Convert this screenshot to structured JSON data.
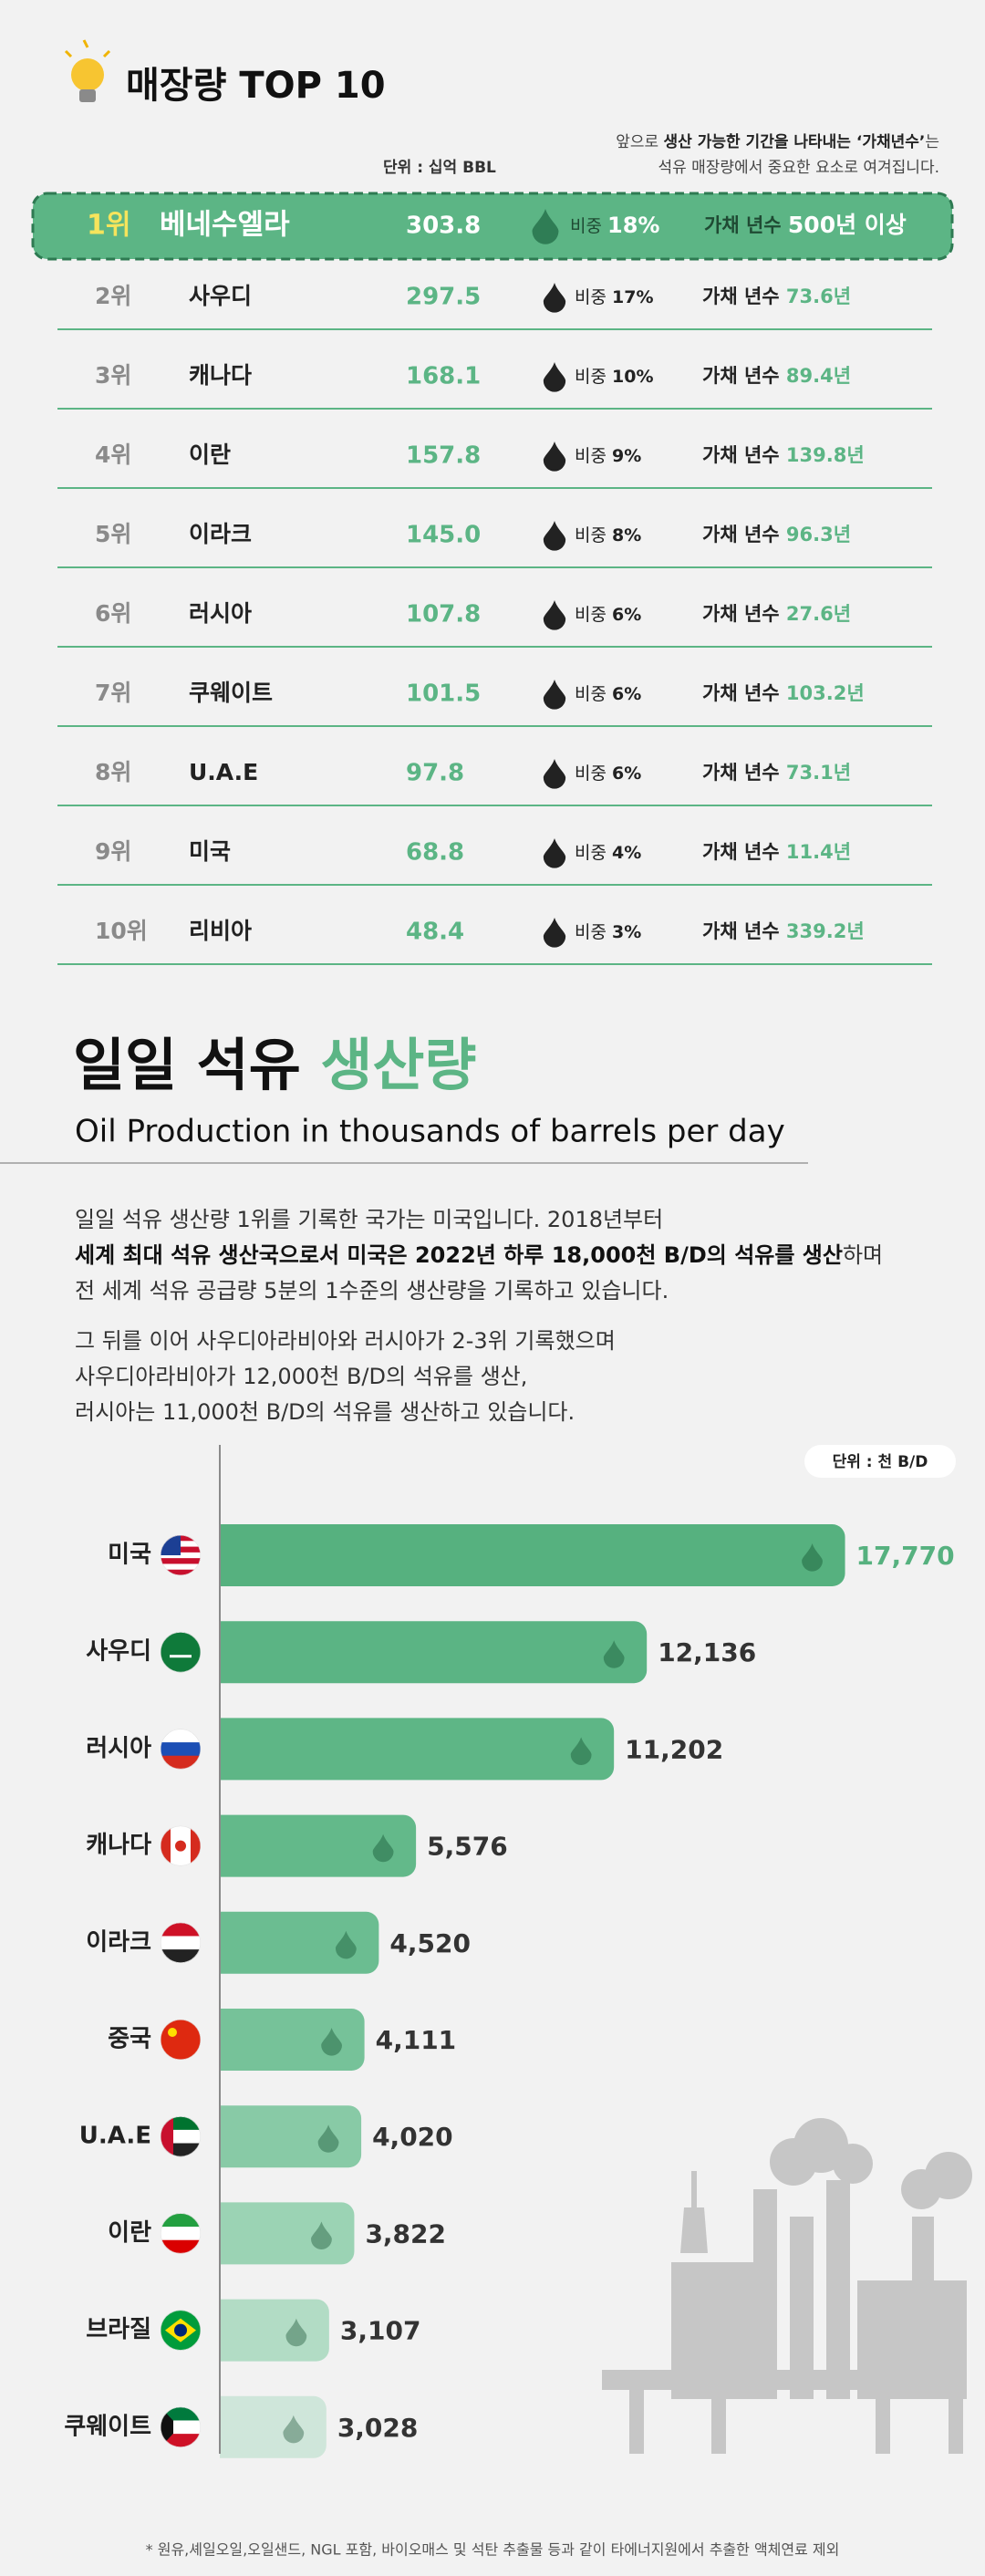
{
  "reserves": {
    "title": "매장량 TOP 10",
    "note": {
      "line1_start": "앞으로 ",
      "line1_bold": "생산 가능한 기간을 나타내는 ‘가채년수’",
      "line1_end": "는",
      "line2": "석유 매장량에서 중요한 요소로 여겨집니다."
    },
    "unit": "단위 : 십억 BBL",
    "share_label": "비중",
    "years_label": "가채 년수",
    "rows": [
      {
        "rank": "1위",
        "country": "베네수엘라",
        "value": "303.8",
        "share": "18%",
        "years": "500년 이상"
      },
      {
        "rank": "2위",
        "country": "사우디",
        "value": "297.5",
        "share": "17%",
        "years": "73.6년"
      },
      {
        "rank": "3위",
        "country": "캐나다",
        "value": "168.1",
        "share": "10%",
        "years": "89.4년"
      },
      {
        "rank": "4위",
        "country": "이란",
        "value": "157.8",
        "share": "9%",
        "years": "139.8년"
      },
      {
        "rank": "5위",
        "country": "이라크",
        "value": "145.0",
        "share": "8%",
        "years": "96.3년"
      },
      {
        "rank": "6위",
        "country": "러시아",
        "value": "107.8",
        "share": "6%",
        "years": "27.6년"
      },
      {
        "rank": "7위",
        "country": "쿠웨이트",
        "value": "101.5",
        "share": "6%",
        "years": "103.2년"
      },
      {
        "rank": "8위",
        "country": "U.A.E",
        "value": "97.8",
        "share": "6%",
        "years": "73.1년"
      },
      {
        "rank": "9위",
        "country": "미국",
        "value": "68.8",
        "share": "4%",
        "years": "11.4년"
      },
      {
        "rank": "10위",
        "country": "리비아",
        "value": "48.4",
        "share": "3%",
        "years": "339.2년"
      }
    ]
  },
  "production": {
    "title": "일일 석유",
    "title_highlight": "생산량",
    "subtitle": "Oil Production in thousands of barrels per day",
    "intro": {
      "line1": "일일 석유 생산량 1위를 기록한 국가는 미국입니다. 2018년부터",
      "line2_bold": "세계 최대 석유 생산국으로서 미국은 2022년 하루 18,000천 B/D의 석유를 생산",
      "line2_rest": "하며",
      "line3": "전 세계 석유 공급량 5분의 1수준의 생산량을 기록하고 있습니다.",
      "line4": "그 뒤를 이어 사우디아라비아와 러시아가 2-3위 기록했으며",
      "line5": "사우디아라비아가 12,000천 B/D의 석유를 생산,",
      "line6": "러시아는 11,000천 B/D의 석유를 생산하고 있습니다."
    },
    "unit": "단위 : 천 B/D",
    "footnote": "* 원유,셰일오일,오일샌드, NGL 포함, 바이오매스 및 석탄 추출물 등과 같이 타에너지원에서 추출한 액체연료 제외"
  },
  "chart_data": {
    "type": "bar",
    "orientation": "horizontal",
    "categories": [
      "미국",
      "사우디",
      "러시아",
      "캐나다",
      "이라크",
      "중국",
      "U.A.E",
      "이란",
      "브라질",
      "쿠웨이트"
    ],
    "values": [
      17770,
      12136,
      11202,
      5576,
      4520,
      4111,
      4020,
      3822,
      3107,
      3028
    ],
    "value_labels": [
      "17,770",
      "12,136",
      "11,202",
      "5,576",
      "4,520",
      "4,111",
      "4,020",
      "3,822",
      "3,107",
      "3,028"
    ],
    "colors": [
      "#56b17f",
      "#5bb484",
      "#5eb686",
      "#63b98a",
      "#6bbd91",
      "#76c299",
      "#88caa6",
      "#9bd3b4",
      "#b2dcc5",
      "#cfe6da"
    ],
    "xlim": [
      0,
      19000
    ]
  }
}
